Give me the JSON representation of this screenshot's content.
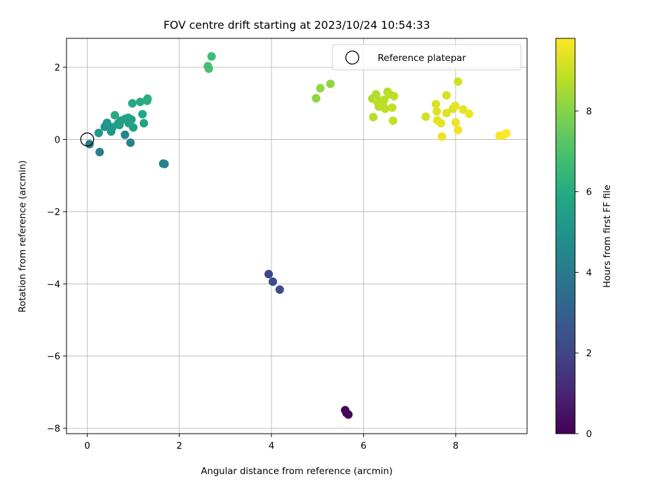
{
  "chart_data": {
    "type": "scatter",
    "title": "FOV centre drift starting at 2023/10/24 10:54:33",
    "xlabel": "Angular distance from reference (arcmin)",
    "ylabel": "Rotation from reference (arcmin)",
    "xlim": [
      -0.45,
      9.55
    ],
    "ylim": [
      -8.15,
      2.8
    ],
    "x_ticks": [
      0,
      2,
      4,
      6,
      8
    ],
    "x_tick_labels": [
      "0",
      "2",
      "4",
      "6",
      "8"
    ],
    "y_ticks": [
      2,
      0,
      -2,
      -4,
      -6,
      -8
    ],
    "y_tick_labels": [
      "2",
      "0",
      "−2",
      "−4",
      "−6",
      "−8"
    ],
    "grid": true,
    "legend": {
      "label": "Reference platepar",
      "placement": "top-right",
      "marker": "open-circle"
    },
    "reference_point": {
      "x": 0,
      "y": 0
    },
    "colormap": "viridis",
    "colorbar": {
      "label": "Hours from first FF file",
      "range": [
        0,
        9.8
      ],
      "ticks": [
        0,
        2,
        4,
        6,
        8
      ],
      "tick_labels": [
        "0",
        "2",
        "4",
        "6",
        "8"
      ]
    },
    "points": [
      {
        "x": 5.6,
        "y": -7.5,
        "c": 0.05
      },
      {
        "x": 5.63,
        "y": -7.58,
        "c": 0.1
      },
      {
        "x": 5.67,
        "y": -7.62,
        "c": 0.15
      },
      {
        "x": 3.94,
        "y": -3.73,
        "c": 2.1
      },
      {
        "x": 4.03,
        "y": -3.94,
        "c": 2.2
      },
      {
        "x": 4.18,
        "y": -4.16,
        "c": 2.3
      },
      {
        "x": 0.05,
        "y": -0.13,
        "c": 4.0
      },
      {
        "x": 0.27,
        "y": -0.35,
        "c": 4.2
      },
      {
        "x": 0.94,
        "y": -0.09,
        "c": 4.35
      },
      {
        "x": 0.82,
        "y": 0.13,
        "c": 4.5
      },
      {
        "x": 1.65,
        "y": -0.67,
        "c": 4.3
      },
      {
        "x": 1.68,
        "y": -0.68,
        "c": 4.32
      },
      {
        "x": 0.25,
        "y": 0.18,
        "c": 5.3
      },
      {
        "x": 0.38,
        "y": 0.35,
        "c": 5.0
      },
      {
        "x": 0.43,
        "y": 0.46,
        "c": 5.1
      },
      {
        "x": 0.52,
        "y": 0.22,
        "c": 5.2
      },
      {
        "x": 0.55,
        "y": 0.34,
        "c": 5.3
      },
      {
        "x": 0.67,
        "y": 0.44,
        "c": 5.4
      },
      {
        "x": 0.73,
        "y": 0.52,
        "c": 5.5
      },
      {
        "x": 0.82,
        "y": 0.57,
        "c": 5.6
      },
      {
        "x": 0.89,
        "y": 0.6,
        "c": 5.7
      },
      {
        "x": 0.96,
        "y": 0.55,
        "c": 5.6
      },
      {
        "x": 1.0,
        "y": 0.33,
        "c": 5.5
      },
      {
        "x": 0.98,
        "y": 1.0,
        "c": 5.9
      },
      {
        "x": 1.15,
        "y": 1.04,
        "c": 6.0
      },
      {
        "x": 1.2,
        "y": 0.7,
        "c": 5.8
      },
      {
        "x": 1.23,
        "y": 0.45,
        "c": 5.7
      },
      {
        "x": 1.3,
        "y": 1.07,
        "c": 6.1
      },
      {
        "x": 1.31,
        "y": 1.13,
        "c": 6.1
      },
      {
        "x": 0.6,
        "y": 0.67,
        "c": 6.0
      },
      {
        "x": 0.7,
        "y": 0.4,
        "c": 5.5
      },
      {
        "x": 0.9,
        "y": 0.45,
        "c": 5.6
      },
      {
        "x": 2.62,
        "y": 2.03,
        "c": 6.8
      },
      {
        "x": 2.64,
        "y": 1.96,
        "c": 6.9
      },
      {
        "x": 2.7,
        "y": 2.3,
        "c": 6.7
      },
      {
        "x": 4.97,
        "y": 1.14,
        "c": 8.1
      },
      {
        "x": 5.06,
        "y": 1.42,
        "c": 8.2
      },
      {
        "x": 5.28,
        "y": 1.54,
        "c": 8.15
      },
      {
        "x": 6.19,
        "y": 1.13,
        "c": 8.6
      },
      {
        "x": 6.27,
        "y": 1.25,
        "c": 8.7
      },
      {
        "x": 6.3,
        "y": 1.05,
        "c": 8.8
      },
      {
        "x": 6.33,
        "y": 0.91,
        "c": 8.75
      },
      {
        "x": 6.38,
        "y": 1.08,
        "c": 8.7
      },
      {
        "x": 6.42,
        "y": 0.96,
        "c": 8.8
      },
      {
        "x": 6.47,
        "y": 0.85,
        "c": 8.85
      },
      {
        "x": 6.52,
        "y": 1.32,
        "c": 8.7
      },
      {
        "x": 6.57,
        "y": 1.25,
        "c": 8.8
      },
      {
        "x": 6.62,
        "y": 0.88,
        "c": 8.9
      },
      {
        "x": 6.66,
        "y": 1.2,
        "c": 8.8
      },
      {
        "x": 6.64,
        "y": 0.52,
        "c": 8.9
      },
      {
        "x": 6.21,
        "y": 0.62,
        "c": 8.7
      },
      {
        "x": 6.45,
        "y": 1.1,
        "c": 8.75
      },
      {
        "x": 7.35,
        "y": 0.63,
        "c": 9.1
      },
      {
        "x": 7.57,
        "y": 0.98,
        "c": 9.2
      },
      {
        "x": 7.59,
        "y": 0.78,
        "c": 9.3
      },
      {
        "x": 7.6,
        "y": 0.53,
        "c": 9.4
      },
      {
        "x": 7.68,
        "y": 0.45,
        "c": 9.4
      },
      {
        "x": 7.7,
        "y": 0.08,
        "c": 9.5
      },
      {
        "x": 7.8,
        "y": 1.22,
        "c": 9.2
      },
      {
        "x": 7.8,
        "y": 0.73,
        "c": 9.3
      },
      {
        "x": 7.94,
        "y": 0.85,
        "c": 9.3
      },
      {
        "x": 7.99,
        "y": 0.93,
        "c": 9.4
      },
      {
        "x": 8.0,
        "y": 0.47,
        "c": 9.5
      },
      {
        "x": 8.05,
        "y": 0.26,
        "c": 9.55
      },
      {
        "x": 8.05,
        "y": 1.6,
        "c": 9.1
      },
      {
        "x": 8.16,
        "y": 0.83,
        "c": 9.4
      },
      {
        "x": 8.29,
        "y": 0.71,
        "c": 9.5
      },
      {
        "x": 8.95,
        "y": 0.1,
        "c": 9.7
      },
      {
        "x": 9.03,
        "y": 0.12,
        "c": 9.75
      },
      {
        "x": 9.1,
        "y": 0.17,
        "c": 9.8
      }
    ]
  }
}
